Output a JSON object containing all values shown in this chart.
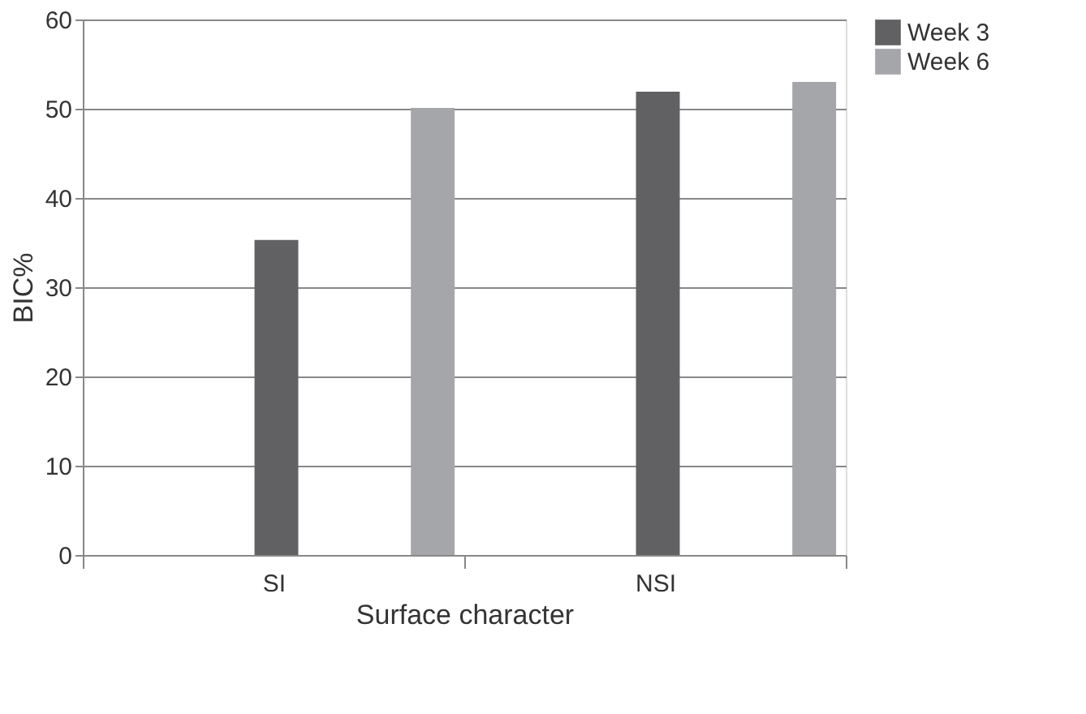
{
  "chart_data": {
    "type": "bar",
    "xlabel": "Surface character",
    "ylabel": "BIC%",
    "categories": [
      "SI",
      "NSI"
    ],
    "series": [
      {
        "name": "Week 3",
        "color": "#616163",
        "values": [
          35.3,
          51.9
        ]
      },
      {
        "name": "Week 6",
        "color": "#a5a6a9",
        "values": [
          50.1,
          53.0
        ]
      }
    ],
    "ylim": [
      0,
      60
    ],
    "yticks": [
      0,
      10,
      20,
      30,
      40,
      50,
      60
    ],
    "grid": "y",
    "legend": "right"
  }
}
